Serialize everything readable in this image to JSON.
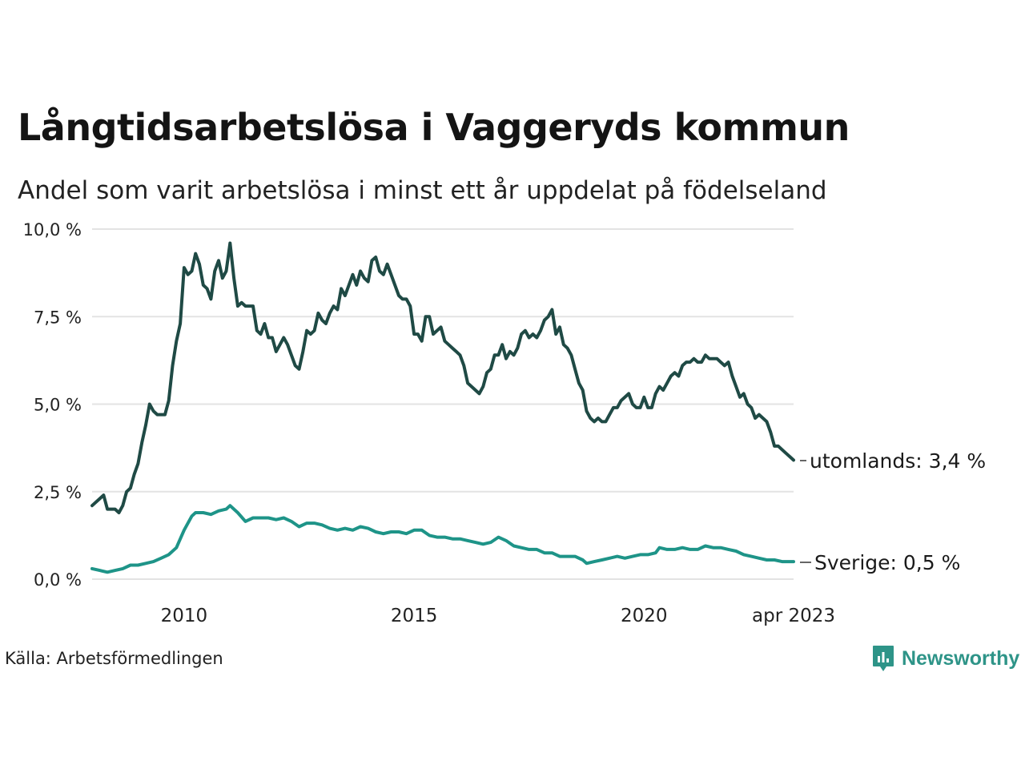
{
  "title": "Långtidsarbetslösa i Vaggeryds kommun",
  "subtitle": "Andel som varit arbetslösa i minst ett år uppdelat på födelseland",
  "source": "Källa: Arbetsförmedlingen",
  "brand": "Newsworthy",
  "colors": {
    "utomlands": "#1f4a45",
    "sverige": "#1e9488",
    "grid": "#e3e3e3",
    "brand": "#2e9488"
  },
  "chart_data": {
    "type": "line",
    "title": "Långtidsarbetslösa i Vaggeryds kommun",
    "subtitle": "Andel som varit arbetslösa i minst ett år uppdelat på födelseland",
    "x_start": "2008-01",
    "x_end": "2023-04",
    "xlim": [
      2008.0,
      2023.25
    ],
    "ylim": [
      0,
      10
    ],
    "y_ticks": [
      {
        "value": 0,
        "label": "0,0 %"
      },
      {
        "value": 2.5,
        "label": "2,5 %"
      },
      {
        "value": 5,
        "label": "5,0 %"
      },
      {
        "value": 7.5,
        "label": "7,5 %"
      },
      {
        "value": 10,
        "label": "10,0 %"
      }
    ],
    "x_ticks": [
      {
        "value": 2010,
        "label": "2010"
      },
      {
        "value": 2015,
        "label": "2015"
      },
      {
        "value": 2020,
        "label": "2020"
      },
      {
        "value": 2023.25,
        "label": "apr 2023"
      }
    ],
    "grid": true,
    "series": [
      {
        "name": "utomlands",
        "end_label": "utomlands: 3,4 %",
        "points": [
          [
            "2008-01",
            2.1
          ],
          [
            "2008-03",
            2.3
          ],
          [
            "2008-04",
            2.4
          ],
          [
            "2008-05",
            2.0
          ],
          [
            "2008-07",
            2.0
          ],
          [
            "2008-08",
            1.9
          ],
          [
            "2008-09",
            2.1
          ],
          [
            "2008-10",
            2.5
          ],
          [
            "2008-11",
            2.6
          ],
          [
            "2008-12",
            3.0
          ],
          [
            "2009-01",
            3.3
          ],
          [
            "2009-02",
            3.9
          ],
          [
            "2009-03",
            4.4
          ],
          [
            "2009-04",
            5.0
          ],
          [
            "2009-05",
            4.8
          ],
          [
            "2009-06",
            4.7
          ],
          [
            "2009-08",
            4.7
          ],
          [
            "2009-09",
            5.1
          ],
          [
            "2009-10",
            6.1
          ],
          [
            "2009-11",
            6.8
          ],
          [
            "2009-12",
            7.3
          ],
          [
            "2010-01",
            8.9
          ],
          [
            "2010-02",
            8.7
          ],
          [
            "2010-03",
            8.8
          ],
          [
            "2010-04",
            9.3
          ],
          [
            "2010-05",
            9.0
          ],
          [
            "2010-06",
            8.4
          ],
          [
            "2010-07",
            8.3
          ],
          [
            "2010-08",
            8.0
          ],
          [
            "2010-09",
            8.8
          ],
          [
            "2010-10",
            9.1
          ],
          [
            "2010-11",
            8.6
          ],
          [
            "2010-12",
            8.8
          ],
          [
            "2011-01",
            9.6
          ],
          [
            "2011-02",
            8.6
          ],
          [
            "2011-03",
            7.8
          ],
          [
            "2011-04",
            7.9
          ],
          [
            "2011-05",
            7.8
          ],
          [
            "2011-06",
            7.8
          ],
          [
            "2011-07",
            7.8
          ],
          [
            "2011-08",
            7.1
          ],
          [
            "2011-09",
            7.0
          ],
          [
            "2011-10",
            7.3
          ],
          [
            "2011-11",
            6.9
          ],
          [
            "2011-12",
            6.9
          ],
          [
            "2012-01",
            6.5
          ],
          [
            "2012-02",
            6.7
          ],
          [
            "2012-03",
            6.9
          ],
          [
            "2012-04",
            6.7
          ],
          [
            "2012-05",
            6.4
          ],
          [
            "2012-06",
            6.1
          ],
          [
            "2012-07",
            6.0
          ],
          [
            "2012-08",
            6.5
          ],
          [
            "2012-09",
            7.1
          ],
          [
            "2012-10",
            7.0
          ],
          [
            "2012-11",
            7.1
          ],
          [
            "2012-12",
            7.6
          ],
          [
            "2013-01",
            7.4
          ],
          [
            "2013-02",
            7.3
          ],
          [
            "2013-03",
            7.6
          ],
          [
            "2013-04",
            7.8
          ],
          [
            "2013-05",
            7.7
          ],
          [
            "2013-06",
            8.3
          ],
          [
            "2013-07",
            8.1
          ],
          [
            "2013-08",
            8.4
          ],
          [
            "2013-09",
            8.7
          ],
          [
            "2013-10",
            8.4
          ],
          [
            "2013-11",
            8.8
          ],
          [
            "2013-12",
            8.6
          ],
          [
            "2014-01",
            8.5
          ],
          [
            "2014-02",
            9.1
          ],
          [
            "2014-03",
            9.2
          ],
          [
            "2014-04",
            8.8
          ],
          [
            "2014-05",
            8.7
          ],
          [
            "2014-06",
            9.0
          ],
          [
            "2014-07",
            8.7
          ],
          [
            "2014-08",
            8.4
          ],
          [
            "2014-09",
            8.1
          ],
          [
            "2014-10",
            8.0
          ],
          [
            "2014-11",
            8.0
          ],
          [
            "2014-12",
            7.8
          ],
          [
            "2015-01",
            7.0
          ],
          [
            "2015-02",
            7.0
          ],
          [
            "2015-03",
            6.8
          ],
          [
            "2015-04",
            7.5
          ],
          [
            "2015-05",
            7.5
          ],
          [
            "2015-06",
            7.0
          ],
          [
            "2015-07",
            7.1
          ],
          [
            "2015-08",
            7.2
          ],
          [
            "2015-09",
            6.8
          ],
          [
            "2015-10",
            6.7
          ],
          [
            "2015-11",
            6.6
          ],
          [
            "2015-12",
            6.5
          ],
          [
            "2016-01",
            6.4
          ],
          [
            "2016-02",
            6.1
          ],
          [
            "2016-03",
            5.6
          ],
          [
            "2016-04",
            5.5
          ],
          [
            "2016-05",
            5.4
          ],
          [
            "2016-06",
            5.3
          ],
          [
            "2016-07",
            5.5
          ],
          [
            "2016-08",
            5.9
          ],
          [
            "2016-09",
            6.0
          ],
          [
            "2016-10",
            6.4
          ],
          [
            "2016-11",
            6.4
          ],
          [
            "2016-12",
            6.7
          ],
          [
            "2017-01",
            6.3
          ],
          [
            "2017-02",
            6.5
          ],
          [
            "2017-03",
            6.4
          ],
          [
            "2017-04",
            6.6
          ],
          [
            "2017-05",
            7.0
          ],
          [
            "2017-06",
            7.1
          ],
          [
            "2017-07",
            6.9
          ],
          [
            "2017-08",
            7.0
          ],
          [
            "2017-09",
            6.9
          ],
          [
            "2017-10",
            7.1
          ],
          [
            "2017-11",
            7.4
          ],
          [
            "2017-12",
            7.5
          ],
          [
            "2018-01",
            7.7
          ],
          [
            "2018-02",
            7.0
          ],
          [
            "2018-03",
            7.2
          ],
          [
            "2018-04",
            6.7
          ],
          [
            "2018-05",
            6.6
          ],
          [
            "2018-06",
            6.4
          ],
          [
            "2018-07",
            6.0
          ],
          [
            "2018-08",
            5.6
          ],
          [
            "2018-09",
            5.4
          ],
          [
            "2018-10",
            4.8
          ],
          [
            "2018-11",
            4.6
          ],
          [
            "2018-12",
            4.5
          ],
          [
            "2019-01",
            4.6
          ],
          [
            "2019-02",
            4.5
          ],
          [
            "2019-03",
            4.5
          ],
          [
            "2019-04",
            4.7
          ],
          [
            "2019-05",
            4.9
          ],
          [
            "2019-06",
            4.9
          ],
          [
            "2019-07",
            5.1
          ],
          [
            "2019-08",
            5.2
          ],
          [
            "2019-09",
            5.3
          ],
          [
            "2019-10",
            5.0
          ],
          [
            "2019-11",
            4.9
          ],
          [
            "2019-12",
            4.9
          ],
          [
            "2020-01",
            5.2
          ],
          [
            "2020-02",
            4.9
          ],
          [
            "2020-03",
            4.9
          ],
          [
            "2020-04",
            5.3
          ],
          [
            "2020-05",
            5.5
          ],
          [
            "2020-06",
            5.4
          ],
          [
            "2020-07",
            5.6
          ],
          [
            "2020-08",
            5.8
          ],
          [
            "2020-09",
            5.9
          ],
          [
            "2020-10",
            5.8
          ],
          [
            "2020-11",
            6.1
          ],
          [
            "2020-12",
            6.2
          ],
          [
            "2021-01",
            6.2
          ],
          [
            "2021-02",
            6.3
          ],
          [
            "2021-03",
            6.2
          ],
          [
            "2021-04",
            6.2
          ],
          [
            "2021-05",
            6.4
          ],
          [
            "2021-06",
            6.3
          ],
          [
            "2021-07",
            6.3
          ],
          [
            "2021-08",
            6.3
          ],
          [
            "2021-09",
            6.2
          ],
          [
            "2021-10",
            6.1
          ],
          [
            "2021-11",
            6.2
          ],
          [
            "2021-12",
            5.8
          ],
          [
            "2022-01",
            5.5
          ],
          [
            "2022-02",
            5.2
          ],
          [
            "2022-03",
            5.3
          ],
          [
            "2022-04",
            5.0
          ],
          [
            "2022-05",
            4.9
          ],
          [
            "2022-06",
            4.6
          ],
          [
            "2022-07",
            4.7
          ],
          [
            "2022-08",
            4.6
          ],
          [
            "2022-09",
            4.5
          ],
          [
            "2022-10",
            4.2
          ],
          [
            "2022-11",
            3.8
          ],
          [
            "2022-12",
            3.8
          ],
          [
            "2023-01",
            3.7
          ],
          [
            "2023-02",
            3.6
          ],
          [
            "2023-03",
            3.5
          ],
          [
            "2023-04",
            3.4
          ]
        ]
      },
      {
        "name": "Sverige",
        "end_label": "Sverige: 0,5 %",
        "points": [
          [
            "2008-01",
            0.3
          ],
          [
            "2008-03",
            0.25
          ],
          [
            "2008-05",
            0.2
          ],
          [
            "2008-07",
            0.25
          ],
          [
            "2008-09",
            0.3
          ],
          [
            "2008-11",
            0.4
          ],
          [
            "2009-01",
            0.4
          ],
          [
            "2009-03",
            0.45
          ],
          [
            "2009-05",
            0.5
          ],
          [
            "2009-07",
            0.6
          ],
          [
            "2009-09",
            0.7
          ],
          [
            "2009-11",
            0.9
          ],
          [
            "2010-01",
            1.4
          ],
          [
            "2010-03",
            1.8
          ],
          [
            "2010-04",
            1.9
          ],
          [
            "2010-06",
            1.9
          ],
          [
            "2010-08",
            1.85
          ],
          [
            "2010-10",
            1.95
          ],
          [
            "2010-12",
            2.0
          ],
          [
            "2011-01",
            2.1
          ],
          [
            "2011-03",
            1.9
          ],
          [
            "2011-05",
            1.65
          ],
          [
            "2011-07",
            1.75
          ],
          [
            "2011-09",
            1.75
          ],
          [
            "2011-11",
            1.75
          ],
          [
            "2012-01",
            1.7
          ],
          [
            "2012-03",
            1.75
          ],
          [
            "2012-05",
            1.65
          ],
          [
            "2012-07",
            1.5
          ],
          [
            "2012-09",
            1.6
          ],
          [
            "2012-11",
            1.6
          ],
          [
            "2013-01",
            1.55
          ],
          [
            "2013-03",
            1.45
          ],
          [
            "2013-05",
            1.4
          ],
          [
            "2013-07",
            1.45
          ],
          [
            "2013-09",
            1.4
          ],
          [
            "2013-11",
            1.5
          ],
          [
            "2014-01",
            1.45
          ],
          [
            "2014-03",
            1.35
          ],
          [
            "2014-05",
            1.3
          ],
          [
            "2014-07",
            1.35
          ],
          [
            "2014-09",
            1.35
          ],
          [
            "2014-11",
            1.3
          ],
          [
            "2015-01",
            1.4
          ],
          [
            "2015-03",
            1.4
          ],
          [
            "2015-05",
            1.25
          ],
          [
            "2015-07",
            1.2
          ],
          [
            "2015-09",
            1.2
          ],
          [
            "2015-11",
            1.15
          ],
          [
            "2016-01",
            1.15
          ],
          [
            "2016-03",
            1.1
          ],
          [
            "2016-05",
            1.05
          ],
          [
            "2016-07",
            1.0
          ],
          [
            "2016-09",
            1.05
          ],
          [
            "2016-11",
            1.2
          ],
          [
            "2017-01",
            1.1
          ],
          [
            "2017-03",
            0.95
          ],
          [
            "2017-05",
            0.9
          ],
          [
            "2017-07",
            0.85
          ],
          [
            "2017-09",
            0.85
          ],
          [
            "2017-11",
            0.75
          ],
          [
            "2018-01",
            0.75
          ],
          [
            "2018-03",
            0.65
          ],
          [
            "2018-05",
            0.65
          ],
          [
            "2018-07",
            0.65
          ],
          [
            "2018-09",
            0.55
          ],
          [
            "2018-10",
            0.45
          ],
          [
            "2018-12",
            0.5
          ],
          [
            "2019-02",
            0.55
          ],
          [
            "2019-04",
            0.6
          ],
          [
            "2019-06",
            0.65
          ],
          [
            "2019-08",
            0.6
          ],
          [
            "2019-10",
            0.65
          ],
          [
            "2019-12",
            0.7
          ],
          [
            "2020-02",
            0.7
          ],
          [
            "2020-04",
            0.75
          ],
          [
            "2020-05",
            0.9
          ],
          [
            "2020-07",
            0.85
          ],
          [
            "2020-09",
            0.85
          ],
          [
            "2020-11",
            0.9
          ],
          [
            "2021-01",
            0.85
          ],
          [
            "2021-03",
            0.85
          ],
          [
            "2021-05",
            0.95
          ],
          [
            "2021-07",
            0.9
          ],
          [
            "2021-09",
            0.9
          ],
          [
            "2021-11",
            0.85
          ],
          [
            "2022-01",
            0.8
          ],
          [
            "2022-03",
            0.7
          ],
          [
            "2022-05",
            0.65
          ],
          [
            "2022-07",
            0.6
          ],
          [
            "2022-09",
            0.55
          ],
          [
            "2022-11",
            0.55
          ],
          [
            "2023-01",
            0.5
          ],
          [
            "2023-03",
            0.5
          ],
          [
            "2023-04",
            0.5
          ]
        ]
      }
    ]
  }
}
